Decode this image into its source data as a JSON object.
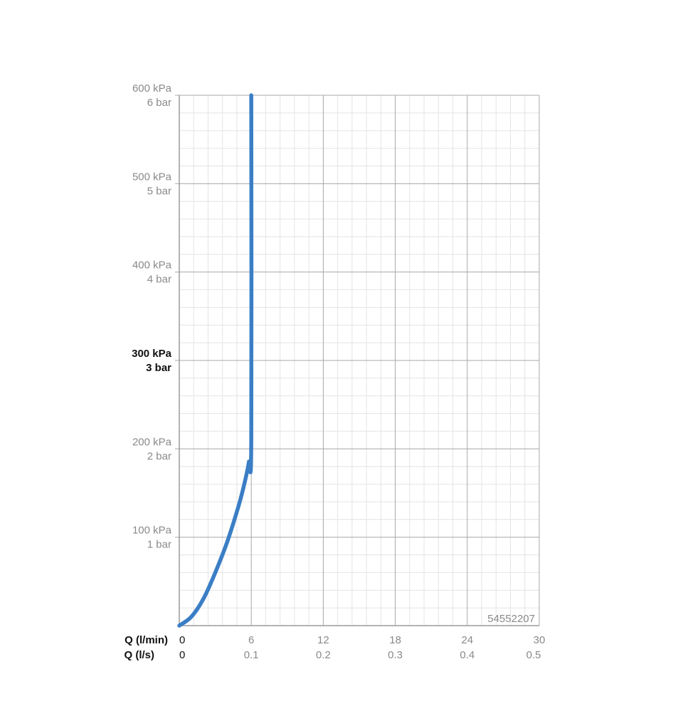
{
  "chart_data": {
    "type": "line",
    "code": "54552207",
    "xaxis_primary": {
      "label": "Q (l/min)",
      "ticks": [
        "0",
        "6",
        "12",
        "18",
        "24",
        "30"
      ],
      "range": [
        0,
        30
      ]
    },
    "xaxis_secondary": {
      "label": "Q (l/s)",
      "ticks": [
        "0",
        "0.1",
        "0.2",
        "0.3",
        "0.4",
        "0.5"
      ],
      "range": [
        0,
        0.5
      ]
    },
    "yaxis": {
      "range": [
        0,
        600
      ],
      "unit": "kPa",
      "ticks": [
        {
          "value": 100,
          "kpa": "100 kPa",
          "bar": "1 bar",
          "bold": false
        },
        {
          "value": 200,
          "kpa": "200 kPa",
          "bar": "2 bar",
          "bold": false
        },
        {
          "value": 300,
          "kpa": "300 kPa",
          "bar": "3 bar",
          "bold": true
        },
        {
          "value": 400,
          "kpa": "400 kPa",
          "bar": "4 bar",
          "bold": false
        },
        {
          "value": 500,
          "kpa": "500 kPa",
          "bar": "5 bar",
          "bold": false
        },
        {
          "value": 600,
          "kpa": "600 kPa",
          "bar": "6 bar",
          "bold": false
        }
      ]
    },
    "grid": true,
    "series": [
      {
        "color": "#3a7ec5",
        "x": [
          0,
          1,
          2,
          3,
          4,
          5,
          5.5,
          5.8,
          6,
          6
        ],
        "y": [
          0,
          10,
          30,
          60,
          95,
          138,
          165,
          185,
          210,
          600
        ]
      }
    ]
  }
}
